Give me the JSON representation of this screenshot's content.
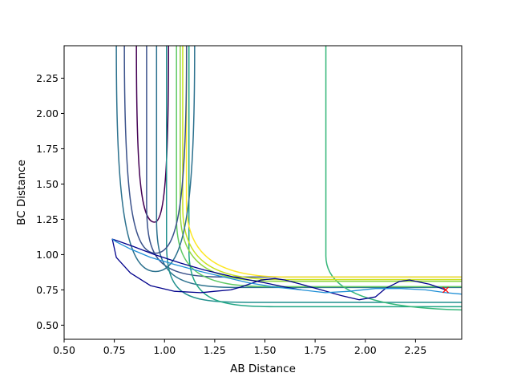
{
  "chart_data": {
    "type": "contour",
    "title": "",
    "xlabel": "AB Distance",
    "ylabel": "BC Distance",
    "xlim": [
      0.5,
      2.48
    ],
    "ylim": [
      0.4,
      2.48
    ],
    "x_ticks": [
      "0.50",
      "0.75",
      "1.00",
      "1.25",
      "1.50",
      "1.75",
      "2.00",
      "2.25"
    ],
    "y_ticks": [
      "0.50",
      "0.75",
      "1.00",
      "1.25",
      "1.50",
      "1.75",
      "2.00",
      "2.25"
    ],
    "grid": false,
    "legend": "none",
    "contour_levels": [
      {
        "color": "#440154",
        "corner_x": 0.95,
        "corner_y": 1.23,
        "closed": true
      },
      {
        "color": "#3b528b",
        "corner_x": 1.04,
        "corner_y": 1.02
      },
      {
        "color": "#2c718e",
        "corner_x": 1.12,
        "corner_y": 0.9
      },
      {
        "color": "#21908d",
        "corner_x": 1.2,
        "corner_y": 0.73
      },
      {
        "color": "#21a685",
        "corner_x": 1.38,
        "corner_y": 0.68
      },
      {
        "color": "#35b779",
        "corner_x": 2.48,
        "corner_y": 0.64
      },
      {
        "color": "#5ec962",
        "corner_x": 1.28,
        "corner_y": 0.91
      },
      {
        "color": "#90d743",
        "corner_x": 1.31,
        "corner_y": 0.97
      },
      {
        "color": "#c8e020",
        "corner_x": 1.33,
        "corner_y": 0.99
      },
      {
        "color": "#fde725",
        "corner_x": 1.36,
        "corner_y": 1.02
      }
    ],
    "series": [
      {
        "color": "#00008b",
        "x": [
          2.4,
          2.32,
          2.22,
          2.17,
          2.1,
          2.05,
          1.97,
          1.88,
          1.78,
          1.68,
          1.6,
          1.55,
          1.48,
          1.42,
          1.38,
          1.33,
          1.25,
          1.18,
          1.05,
          0.93,
          0.83,
          0.76,
          0.74,
          0.76,
          0.84,
          0.95,
          1.08,
          1.2,
          1.35,
          1.5,
          1.6,
          1.68
        ],
        "y": [
          0.75,
          0.79,
          0.82,
          0.81,
          0.76,
          0.7,
          0.68,
          0.71,
          0.75,
          0.79,
          0.82,
          0.83,
          0.82,
          0.79,
          0.77,
          0.75,
          0.74,
          0.73,
          0.74,
          0.78,
          0.87,
          0.98,
          1.11,
          1.1,
          1.06,
          1.0,
          0.94,
          0.89,
          0.84,
          0.8,
          0.77,
          0.75
        ]
      },
      {
        "color": "#1f8fd6",
        "x": [
          2.48,
          2.4,
          2.3,
          2.18,
          2.05,
          1.92,
          1.8,
          1.68,
          1.55,
          1.42,
          1.3,
          1.18,
          1.05,
          0.93,
          0.83,
          0.76,
          0.74
        ],
        "y": [
          0.72,
          0.73,
          0.75,
          0.76,
          0.76,
          0.74,
          0.73,
          0.75,
          0.77,
          0.8,
          0.84,
          0.88,
          0.93,
          0.98,
          1.04,
          1.09,
          1.11
        ]
      }
    ],
    "markers": [
      {
        "symbol": "x",
        "color": "#ff0000",
        "x": 2.4,
        "y": 0.75
      }
    ]
  }
}
